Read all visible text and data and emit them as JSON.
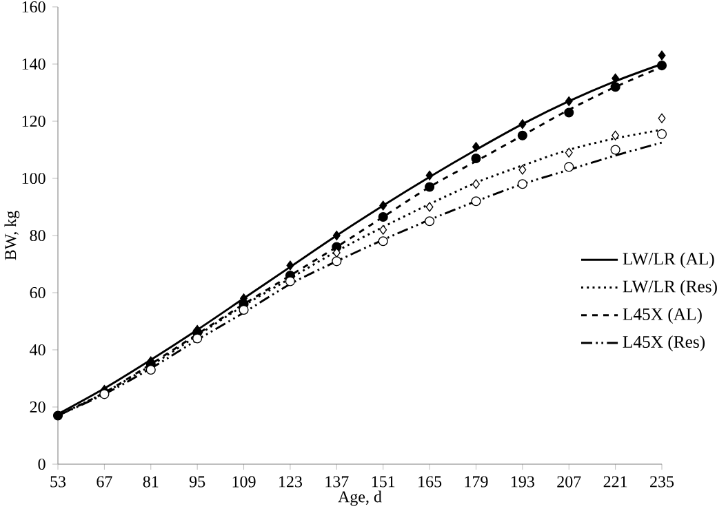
{
  "chart_data": {
    "type": "line",
    "xlabel": "Age, d",
    "ylabel": "BW, kg",
    "x": [
      53,
      67,
      81,
      95,
      109,
      123,
      137,
      151,
      165,
      179,
      193,
      207,
      221,
      235
    ],
    "xlim": [
      53,
      235
    ],
    "xticks": [
      53,
      67,
      81,
      95,
      109,
      123,
      137,
      151,
      165,
      179,
      193,
      207,
      221,
      235
    ],
    "ylim": [
      0,
      160
    ],
    "yticks": [
      0,
      20,
      40,
      60,
      80,
      100,
      120,
      140,
      160
    ],
    "grid": false,
    "legend": "right",
    "marker": "none",
    "series": [
      {
        "name": "LW/LR (AL)",
        "color": "#000000",
        "line_style": "solid",
        "values": [
          17.5,
          26.5,
          36.5,
          47,
          58,
          69,
          80,
          90.5,
          100.5,
          110,
          119,
          127,
          134,
          140
        ]
      },
      {
        "name": "LW/LR (Res)",
        "color": "#000000",
        "line_style": "dotted",
        "values": [
          17,
          25,
          34.5,
          45,
          55.5,
          65,
          74.5,
          83,
          91,
          98.5,
          104.5,
          110,
          114,
          117
        ]
      },
      {
        "name": "L45X (AL)",
        "color": "#000000",
        "line_style": "dashed",
        "values": [
          17,
          25,
          35,
          45.5,
          56,
          66,
          76,
          86.5,
          97,
          106,
          115,
          124,
          132,
          139
        ]
      },
      {
        "name": "L45X (Res)",
        "color": "#000000",
        "line_style": "dashdotdotted",
        "values": [
          17,
          24.5,
          33.5,
          43.5,
          53,
          63,
          71,
          78.5,
          85.5,
          92,
          98,
          103,
          108,
          112.5
        ]
      },
      {
        "type": "scatter",
        "color": "#000000",
        "marker": "circle",
        "values": [
          17,
          null,
          35,
          46,
          56,
          66,
          76,
          86.5,
          97,
          107,
          115,
          123,
          132,
          139.5
        ]
      },
      {
        "type": "scatter",
        "color": "#000000",
        "marker": "diamond",
        "values": [
          null,
          26,
          36,
          47,
          58,
          69.5,
          80,
          90.5,
          101,
          111,
          119,
          127,
          135,
          143
        ]
      },
      {
        "type": "scatter",
        "color": "#ffffff",
        "marker": "diamond",
        "values": [
          null,
          null,
          null,
          null,
          null,
          null,
          74,
          82,
          90,
          98,
          103,
          109,
          115,
          121
        ]
      },
      {
        "type": "scatter",
        "color": "#ffffff",
        "marker": "circle",
        "values": [
          null,
          24.5,
          33,
          44,
          54,
          64,
          71,
          78,
          85,
          92,
          98,
          104,
          110,
          115.5
        ]
      }
    ]
  }
}
